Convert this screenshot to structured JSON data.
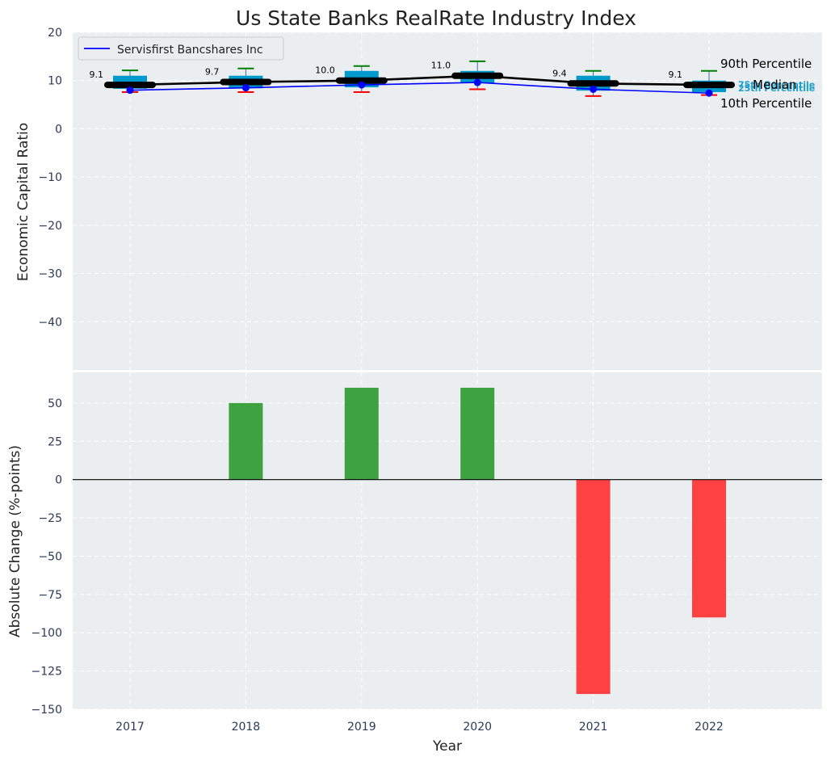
{
  "chart_data": [
    {
      "type": "boxplot-line",
      "title": "Us State Banks RealRate Industry Index",
      "xlabel": "",
      "ylabel": "Economic Capital Ratio",
      "ylim": [
        -50,
        20
      ],
      "yticks": [
        20,
        10,
        0,
        -10,
        -20,
        -30,
        -40
      ],
      "categories": [
        "2017",
        "2018",
        "2019",
        "2020",
        "2021",
        "2022"
      ],
      "grid": true,
      "legend": {
        "position": "top-left",
        "entries": [
          "Servisfirst Bancshares Inc"
        ]
      },
      "percentiles": {
        "p10": [
          7.6,
          7.6,
          7.6,
          8.2,
          6.8,
          7.0
        ],
        "p25": [
          8.3,
          8.4,
          8.6,
          9.5,
          7.9,
          7.6
        ],
        "median": [
          9.1,
          9.7,
          10.0,
          11.0,
          9.4,
          9.1
        ],
        "p75": [
          11.0,
          11.0,
          12.0,
          12.0,
          11.0,
          10.0
        ],
        "p90": [
          12.1,
          12.5,
          13.0,
          14.0,
          12.0,
          12.0
        ]
      },
      "median_labels": [
        "9.1",
        "9.7",
        "10.0",
        "11.0",
        "9.4",
        "9.1"
      ],
      "series": [
        {
          "name": "Servisfirst Bancshares Inc",
          "values": [
            8.0,
            8.5,
            9.1,
            9.6,
            8.2,
            7.4
          ],
          "color": "#0000ff"
        },
        {
          "name": "Median",
          "values": [
            9.1,
            9.7,
            10.0,
            11.0,
            9.4,
            9.1
          ],
          "color": "#000000"
        }
      ],
      "annotations": {
        "p90": "90th Percentile",
        "p75": "75th Percentile",
        "median": "Median",
        "p25": "25th Percentile",
        "p10": "10th Percentile"
      }
    },
    {
      "type": "bar",
      "xlabel": "Year",
      "ylabel": "Absolute Change (%-points)",
      "ylim": [
        -150,
        70
      ],
      "yticks": [
        50,
        25,
        0,
        -25,
        -50,
        -75,
        -100,
        -125,
        -150
      ],
      "categories": [
        "2017",
        "2018",
        "2019",
        "2020",
        "2021",
        "2022"
      ],
      "values": [
        0,
        50,
        60,
        60,
        -140,
        -90
      ],
      "grid": true
    }
  ],
  "colors": {
    "plot_bg": "#eaeef0",
    "grid": "#ffffff",
    "box": "#0099cc",
    "positive": "#2e9b30",
    "negative": "#ff3333",
    "whisker_top": "#008000",
    "whisker_bottom": "#ff0000",
    "tick_text": "#2b3a55",
    "annotation_small": "#1ea1c9"
  }
}
